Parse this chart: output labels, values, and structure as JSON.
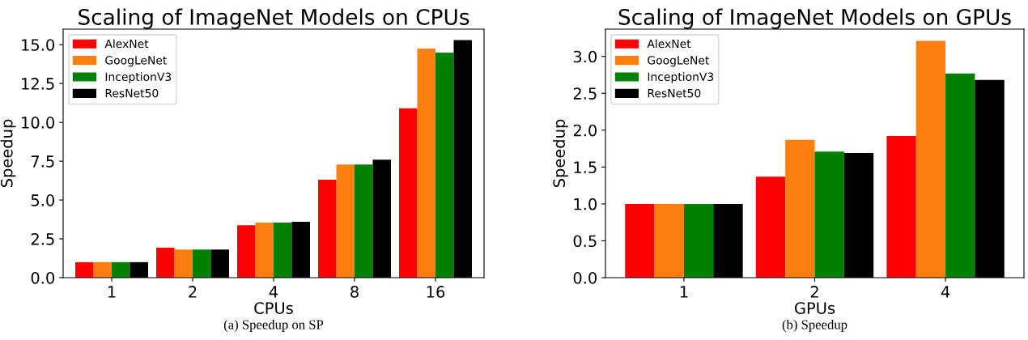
{
  "chart_data": [
    {
      "type": "bar",
      "title": "Scaling of ImageNet Models on CPUs",
      "xlabel": "CPUs",
      "ylabel": "Speedup",
      "categories": [
        "1",
        "2",
        "4",
        "8",
        "16"
      ],
      "series": [
        {
          "name": "AlexNet",
          "color": "#ff0000",
          "values": [
            1.0,
            1.93,
            3.38,
            6.3,
            10.91
          ]
        },
        {
          "name": "GoogLeNet",
          "color": "#ff7f0e",
          "values": [
            1.0,
            1.81,
            3.54,
            7.28,
            14.75
          ]
        },
        {
          "name": "InceptionV3",
          "color": "#008000",
          "values": [
            1.0,
            1.81,
            3.54,
            7.28,
            14.49
          ]
        },
        {
          "name": "ResNet50",
          "color": "#000000",
          "values": [
            1.0,
            1.81,
            3.6,
            7.59,
            15.29
          ]
        }
      ],
      "ylim": [
        0,
        16.0
      ],
      "yticks": [
        {
          "value": 0,
          "label": "0.0"
        },
        2.5,
        {
          "value": 5,
          "label": "5.0"
        },
        7.5,
        {
          "value": 10,
          "label": "10.0"
        },
        12.5,
        {
          "value": 15,
          "label": "15.0"
        }
      ],
      "legend": "top left",
      "grid": false,
      "annotations": [
        "(a) Speedup on SP"
      ]
    },
    {
      "type": "bar",
      "title": "Scaling of ImageNet Models on GPUs",
      "xlabel": "GPUs",
      "ylabel": "Speedup",
      "categories": [
        "1",
        "2",
        "4"
      ],
      "series": [
        {
          "name": "AlexNet",
          "color": "#ff0000",
          "values": [
            1.0,
            1.37,
            1.92
          ]
        },
        {
          "name": "GoogLeNet",
          "color": "#ff7f0e",
          "values": [
            1.0,
            1.87,
            3.21
          ]
        },
        {
          "name": "InceptionV3",
          "color": "#008000",
          "values": [
            1.0,
            1.71,
            2.77
          ]
        },
        {
          "name": "ResNet50",
          "color": "#000000",
          "values": [
            1.0,
            1.69,
            2.68
          ]
        }
      ],
      "ylim": [
        0,
        3.37
      ],
      "yticks": [
        {
          "value": 0,
          "label": "0.0"
        },
        0.5,
        {
          "value": 1,
          "label": "1.0"
        },
        1.5,
        {
          "value": 2,
          "label": "2.0"
        },
        2.5,
        {
          "value": 3,
          "label": "3.0"
        }
      ],
      "legend": "top left",
      "grid": false,
      "annotations": [
        "(b) Speedup"
      ]
    }
  ]
}
